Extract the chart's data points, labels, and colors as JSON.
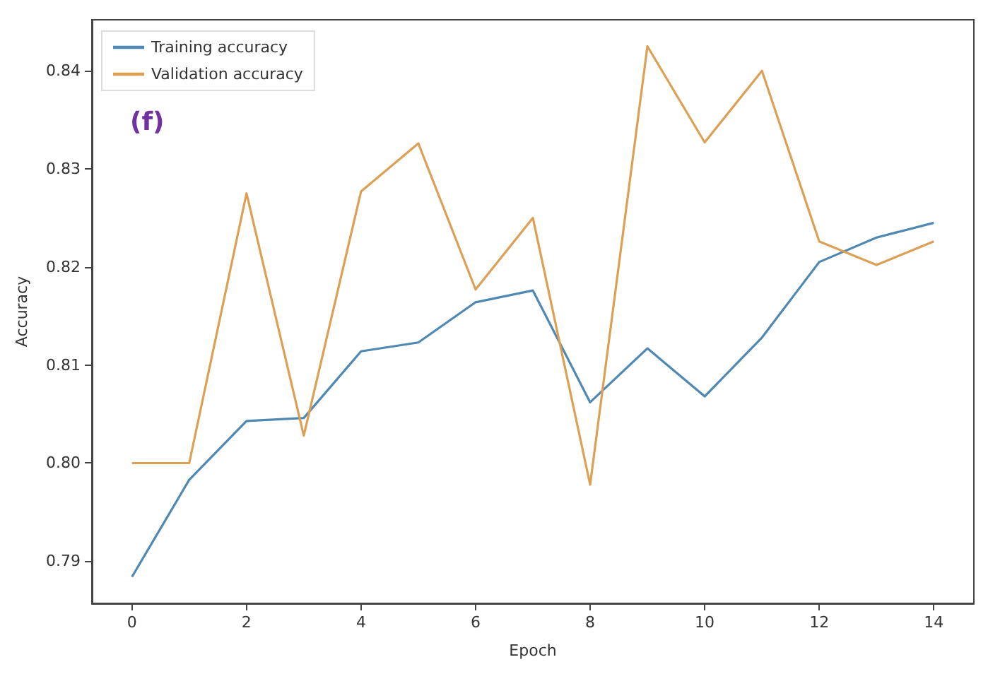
{
  "chart_data": {
    "type": "line",
    "xlabel": "Epoch",
    "ylabel": "Accuracy",
    "annotations": [
      "(f)"
    ],
    "x": [
      0,
      1,
      2,
      3,
      4,
      5,
      6,
      7,
      8,
      9,
      10,
      11,
      12,
      13,
      14
    ],
    "series": [
      {
        "name": "Training accuracy",
        "color": "#4f88b3",
        "values": [
          0.7884,
          0.7983,
          0.8043,
          0.8046,
          0.8114,
          0.8123,
          0.8164,
          0.8176,
          0.8062,
          0.8117,
          0.8068,
          0.8128,
          0.8205,
          0.823,
          0.8245
        ]
      },
      {
        "name": "Validation accuracy",
        "color": "#dca055",
        "values": [
          0.8,
          0.8,
          0.8275,
          0.8028,
          0.8277,
          0.8326,
          0.8177,
          0.825,
          0.7978,
          0.8425,
          0.8327,
          0.84,
          0.8226,
          0.8202,
          0.8226
        ]
      }
    ],
    "xlim": [
      -0.7,
      14.7
    ],
    "ylim": [
      0.7857,
      0.8452
    ],
    "xticks": [
      0,
      2,
      4,
      6,
      8,
      10,
      12,
      14
    ],
    "yticks": [
      {
        "value": 0.79,
        "label": "0.79"
      },
      {
        "value": 0.8,
        "label": "0.80"
      },
      {
        "value": 0.81,
        "label": "0.81"
      },
      {
        "value": 0.82,
        "label": "0.82"
      },
      {
        "value": 0.83,
        "label": "0.83"
      },
      {
        "value": 0.84,
        "label": "0.84"
      }
    ],
    "grid": false,
    "legend": "top left",
    "marker": "none",
    "line_style": "solid"
  }
}
